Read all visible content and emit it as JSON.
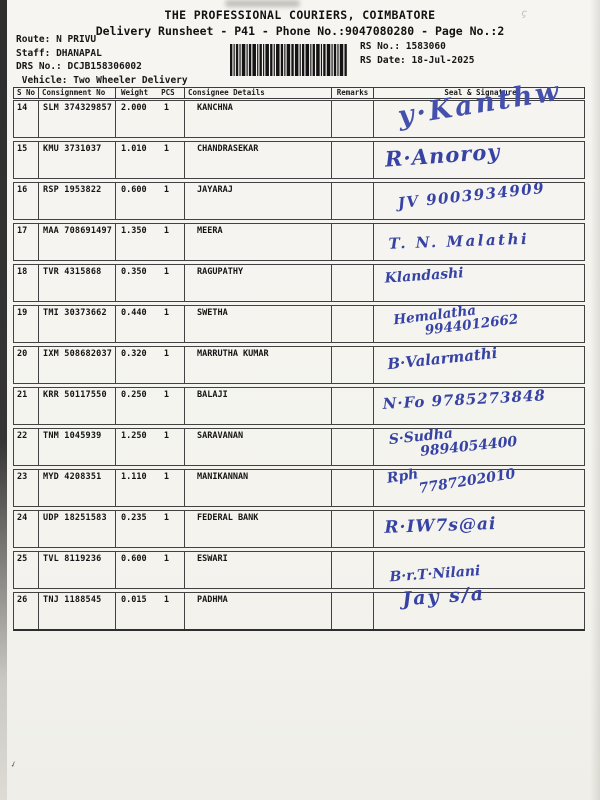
{
  "header": {
    "title": "THE PROFESSIONAL COURIERS, COIMBATORE",
    "subtitle": "Delivery Runsheet - P41 - Phone No.:9047080280 - Page No.:2",
    "meta_left": [
      {
        "label": "Route:",
        "value": "N PRIVU"
      },
      {
        "label": "Staff:",
        "value": "DHANAPAL"
      },
      {
        "label": "DRS No.:",
        "value": "DCJB158306002"
      },
      {
        "label": "Vehicle:",
        "value": "Two Wheeler Delivery"
      }
    ],
    "meta_right": [
      {
        "label": "RS No.:",
        "value": "1583060"
      },
      {
        "label": "RS Date:",
        "value": "18-Jul-2025"
      }
    ],
    "barcode": "barcode-no-readable-value"
  },
  "table": {
    "header": {
      "sno": "S No",
      "consignment": "Consignment No",
      "weight": "Weight",
      "pcs": "PCS",
      "consignee": "Consignee Details",
      "remarks": "Remarks",
      "seal": "Seal & Signature"
    },
    "rows": [
      {
        "sno": "14",
        "consignment": "SLM 374329857",
        "weight": "2.000",
        "pcs": "1",
        "consignee": "KANCHNA",
        "remarks": "",
        "signature": [
          "y·Kanthw"
        ]
      },
      {
        "sno": "15",
        "consignment": "KMU 3731037",
        "weight": "1.010",
        "pcs": "1",
        "consignee": "CHANDRASEKAR",
        "remarks": "",
        "signature": [
          "R·Anoroy"
        ]
      },
      {
        "sno": "16",
        "consignment": "RSP 1953822",
        "weight": "0.600",
        "pcs": "1",
        "consignee": "JAYARAJ",
        "remarks": "",
        "signature": [
          "JV 9003934909"
        ]
      },
      {
        "sno": "17",
        "consignment": "MAA 708691497",
        "weight": "1.350",
        "pcs": "1",
        "consignee": "MEERA",
        "remarks": "",
        "signature": [
          "T. N. Malathi"
        ]
      },
      {
        "sno": "18",
        "consignment": "TVR 4315868",
        "weight": "0.350",
        "pcs": "1",
        "consignee": "RAGUPATHY",
        "remarks": "",
        "signature": [
          "Klandashi"
        ]
      },
      {
        "sno": "19",
        "consignment": "TMI 30373662",
        "weight": "0.440",
        "pcs": "1",
        "consignee": "SWETHA",
        "remarks": "",
        "signature": [
          "Hemalatha",
          "9944012662"
        ]
      },
      {
        "sno": "20",
        "consignment": "IXM 508682037",
        "weight": "0.320",
        "pcs": "1",
        "consignee": "MARRUTHA KUMAR",
        "remarks": "",
        "signature": [
          "B·Valarmathi"
        ]
      },
      {
        "sno": "21",
        "consignment": "KRR 50117550",
        "weight": "0.250",
        "pcs": "1",
        "consignee": "BALAJI",
        "remarks": "",
        "signature": [
          "N·Fo 9785273848"
        ]
      },
      {
        "sno": "22",
        "consignment": "TNM 1045939",
        "weight": "1.250",
        "pcs": "1",
        "consignee": "SARAVANAN",
        "remarks": "",
        "signature": [
          "S·Sudha",
          "9894054400"
        ]
      },
      {
        "sno": "23",
        "consignment": "MYD 4208351",
        "weight": "1.110",
        "pcs": "1",
        "consignee": "MANIKANNAN",
        "remarks": "",
        "signature": [
          "Rph",
          "7787202010"
        ]
      },
      {
        "sno": "24",
        "consignment": "UDP 18251583",
        "weight": "0.235",
        "pcs": "1",
        "consignee": "FEDERAL BANK",
        "remarks": "",
        "signature": [
          "R·IW7s@ai"
        ]
      },
      {
        "sno": "25",
        "consignment": "TVL 8119236",
        "weight": "0.600",
        "pcs": "1",
        "consignee": "ESWARI",
        "remarks": "",
        "signature": [
          "B·r.T·Nilani"
        ]
      },
      {
        "sno": "26",
        "consignment": "TNJ 1188545",
        "weight": "0.015",
        "pcs": "1",
        "consignee": "PADHMA",
        "remarks": "",
        "signature": [
          "Jay s/a"
        ]
      }
    ]
  },
  "ink_color": "#3743a4",
  "paper_color": "#f6f5f1"
}
